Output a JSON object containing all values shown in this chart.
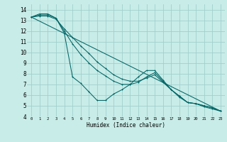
{
  "xlabel": "Humidex (Indice chaleur)",
  "bg_color": "#c8ece8",
  "grid_color": "#a0d0cc",
  "line_color": "#006666",
  "xlim": [
    -0.5,
    23.5
  ],
  "ylim": [
    4,
    14.5
  ],
  "xticks": [
    0,
    1,
    2,
    3,
    4,
    5,
    6,
    7,
    8,
    9,
    10,
    11,
    12,
    13,
    14,
    15,
    16,
    17,
    18,
    19,
    20,
    21,
    22,
    23
  ],
  "yticks": [
    4,
    5,
    6,
    7,
    8,
    9,
    10,
    11,
    12,
    13,
    14
  ],
  "line1_x": [
    0,
    1,
    2,
    3,
    4,
    5,
    6,
    7,
    8,
    9,
    10,
    11,
    12,
    13,
    14,
    15,
    16,
    17,
    18,
    19,
    20,
    21,
    22,
    23
  ],
  "line1_y": [
    13.3,
    13.6,
    13.6,
    13.2,
    11.8,
    7.7,
    7.1,
    6.3,
    5.5,
    5.5,
    6.1,
    6.5,
    7.0,
    7.7,
    8.3,
    8.3,
    7.4,
    6.5,
    5.8,
    5.3,
    5.2,
    5.0,
    4.8,
    4.5
  ],
  "line2_x": [
    0,
    1,
    2,
    3,
    4,
    5,
    6,
    7,
    8,
    9,
    10,
    11,
    12,
    13,
    14,
    15,
    16,
    17,
    18,
    19,
    20,
    21,
    22,
    23
  ],
  "line2_y": [
    13.3,
    13.5,
    13.5,
    13.2,
    12.0,
    10.8,
    9.8,
    9.0,
    8.3,
    7.8,
    7.3,
    7.0,
    7.0,
    7.2,
    7.7,
    8.1,
    7.3,
    6.5,
    5.9,
    5.3,
    5.2,
    5.0,
    4.8,
    4.5
  ],
  "line3_x": [
    0,
    1,
    2,
    3,
    4,
    5,
    6,
    7,
    8,
    9,
    10,
    11,
    12,
    13,
    14,
    15,
    16,
    17,
    18,
    19,
    20,
    21,
    22,
    23
  ],
  "line3_y": [
    13.3,
    13.4,
    13.4,
    13.1,
    12.2,
    11.4,
    10.6,
    9.9,
    9.1,
    8.5,
    7.9,
    7.5,
    7.3,
    7.3,
    7.6,
    7.9,
    7.2,
    6.5,
    5.9,
    5.3,
    5.2,
    4.9,
    4.7,
    4.5
  ],
  "line4_x": [
    0,
    23
  ],
  "line4_y": [
    13.3,
    4.5
  ]
}
